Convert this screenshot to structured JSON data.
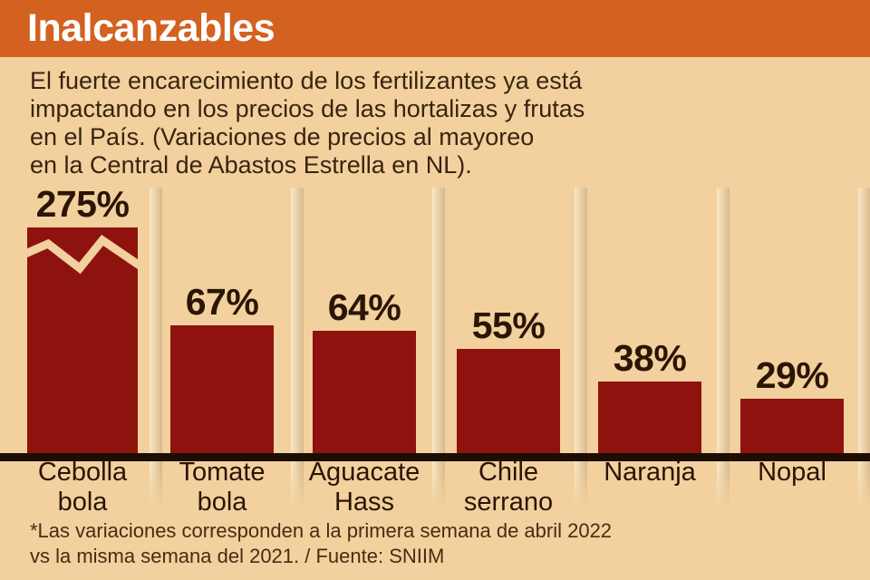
{
  "header": {
    "title": "Inalcanzables"
  },
  "intro": {
    "text": "El fuerte encarecimiento de los fertilizantes ya está\nimpactando en los precios de las hortalizas y frutas\nen el País. (Variaciones de precios al mayoreo\nen la Central de Abastos Estrella en NL)."
  },
  "chart_data": {
    "type": "bar",
    "title": "Inalcanzables",
    "subtitle": "Variaciones de precios al mayoreo en la Central de Abastos Estrella en NL",
    "categories": [
      "Cebolla\nbola",
      "Tomate\nbola",
      "Aguacate\nHass",
      "Chile\nserrano",
      "Naranja",
      "Nopal"
    ],
    "values": [
      275,
      67,
      64,
      55,
      38,
      29
    ],
    "value_labels": [
      "275%",
      "67%",
      "64%",
      "55%",
      "38%",
      "29%"
    ],
    "unit": "%",
    "bar_color": "#8E130F",
    "axis_break_bar_index": 0,
    "axis_break_note": "First bar truncated with tan zigzag break because 275% exceeds the drawn scale",
    "grid": false,
    "legend": false,
    "xlabel": "",
    "ylabel": ""
  },
  "footnote": {
    "text": "*Las variaciones corresponden a la primera semana de abril 2022\nvs la misma semana del 2021. / Fuente: SNIIM"
  },
  "colors": {
    "background": "#F2D19E",
    "header_bg": "#D3611F",
    "title_text": "#FFFFFF",
    "bar": "#8E130F",
    "baseline": "#1C0E04",
    "body_text": "#3A2310",
    "label_text": "#2B1505",
    "footnote_text": "#4A2A12",
    "separator_light": "#F8E8C4",
    "separator_dark": "#D9B88B"
  }
}
